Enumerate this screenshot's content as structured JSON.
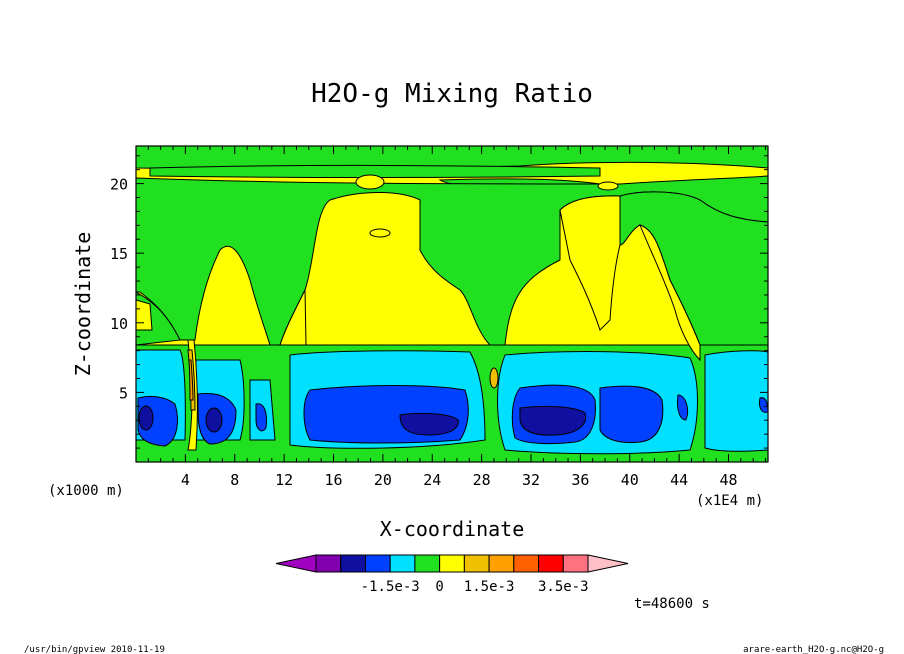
{
  "chart_data": {
    "type": "heatmap",
    "title": "H2O-g Mixing Ratio",
    "xlabel": "X-coordinate",
    "ylabel": "Z-coordinate",
    "x_unit_left": "(x1000 m)",
    "x_unit_right": "(x1E4 m)",
    "xlim": [
      0,
      51.2
    ],
    "ylim": [
      0,
      22.7
    ],
    "x_ticks": [
      "4",
      "8",
      "12",
      "16",
      "20",
      "24",
      "28",
      "32",
      "36",
      "40",
      "44",
      "48"
    ],
    "y_ticks": [
      "5",
      "10",
      "15",
      "20"
    ],
    "colorbar": {
      "colors": [
        "#a000c0",
        "#8000b0",
        "#1010a0",
        "#0040ff",
        "#00e0ff",
        "#20e020",
        "#ffff00",
        "#f0c000",
        "#ffa000",
        "#ff6000",
        "#ff0000",
        "#ff7080",
        "#ffc0c8"
      ],
      "labels": [
        "-1.5e-3",
        "0",
        "1.5e-3",
        "3.5e-3"
      ],
      "extend": "both"
    },
    "levels": {
      "c_dark": "#1010a0",
      "c_blue": "#0040ff",
      "c_cyan": "#00e0ff",
      "c_green": "#20e020",
      "c_yellow": "#ffff00",
      "c_gold": "#f0c000",
      "c_orange": "#ffa000"
    },
    "time_label": "t=48600 s"
  },
  "footer": {
    "left": "/usr/bin/gpview  2010-11-19",
    "right": "arare-earth_H2O-g.nc@H2O-g"
  }
}
